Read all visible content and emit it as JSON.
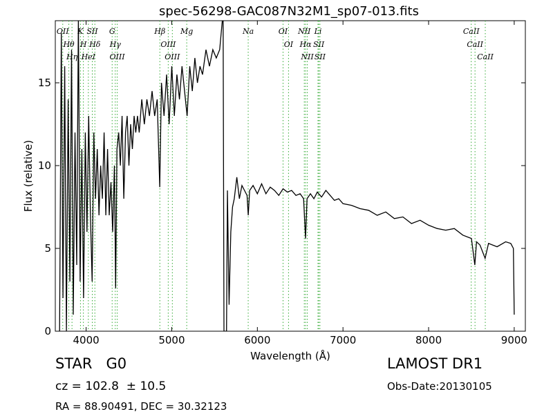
{
  "chart_data": {
    "type": "line",
    "title": "spec-56298-GAC087N32M1_sp07-013.fits",
    "x_label": "Wavelength (Å)",
    "y_label": "Flux (relative)",
    "xlim": [
      3640,
      9130
    ],
    "ylim": [
      0,
      18.75
    ],
    "xticks": [
      4000,
      5000,
      6000,
      7000,
      8000,
      9000
    ],
    "yticks": [
      0,
      5,
      10,
      15
    ],
    "color": "#000000",
    "line_color": "#33aa33",
    "x": [
      3690,
      3710,
      3730,
      3750,
      3770,
      3790,
      3810,
      3830,
      3850,
      3870,
      3890,
      3910,
      3930,
      3950,
      3970,
      3990,
      4010,
      4030,
      4050,
      4070,
      4090,
      4110,
      4130,
      4150,
      4170,
      4190,
      4210,
      4230,
      4250,
      4270,
      4290,
      4310,
      4330,
      4345,
      4360,
      4380,
      4400,
      4420,
      4440,
      4460,
      4480,
      4500,
      4520,
      4540,
      4560,
      4580,
      4600,
      4620,
      4650,
      4680,
      4710,
      4740,
      4770,
      4800,
      4830,
      4860,
      4880,
      4910,
      4940,
      4970,
      5000,
      5030,
      5060,
      5090,
      5120,
      5150,
      5180,
      5210,
      5240,
      5270,
      5300,
      5330,
      5360,
      5400,
      5440,
      5480,
      5520,
      5560,
      5590,
      5600,
      5610,
      5640,
      5650,
      5670,
      5690,
      5710,
      5730,
      5760,
      5790,
      5820,
      5850,
      5880,
      5893,
      5910,
      5950,
      6000,
      6050,
      6100,
      6150,
      6200,
      6250,
      6300,
      6350,
      6400,
      6450,
      6500,
      6540,
      6563,
      6580,
      6620,
      6660,
      6700,
      6750,
      6800,
      6850,
      6900,
      6950,
      7000,
      7100,
      7200,
      7300,
      7400,
      7500,
      7600,
      7700,
      7800,
      7900,
      8000,
      8100,
      8200,
      8300,
      8400,
      8500,
      8540,
      8560,
      8600,
      8660,
      8700,
      8800,
      8900,
      8960,
      8990,
      9000
    ],
    "values": [
      0,
      18,
      2,
      16,
      0,
      14,
      3,
      17,
      1,
      12,
      4,
      19,
      3,
      11,
      2,
      12,
      6,
      13,
      7,
      3,
      12,
      8,
      11,
      7,
      10,
      8,
      12,
      7,
      11,
      7,
      9,
      6,
      10,
      2.6,
      11,
      12,
      10,
      13,
      8,
      12,
      13,
      10,
      12.5,
      11,
      13,
      12,
      13,
      12,
      14,
      12.5,
      14,
      13,
      14.5,
      13,
      14,
      8.7,
      15,
      13,
      15.5,
      12.5,
      16,
      13,
      15.5,
      14,
      16,
      14.5,
      13,
      16,
      14.5,
      16.5,
      15,
      16,
      15.5,
      17,
      16,
      17,
      16.5,
      17,
      18.7,
      18.7,
      0,
      0,
      8.5,
      1.6,
      6,
      7.5,
      8,
      9.3,
      8,
      8.8,
      8.5,
      8.2,
      7,
      8.5,
      8.8,
      8.3,
      8.9,
      8.3,
      8.7,
      8.5,
      8.2,
      8.6,
      8.4,
      8.5,
      8.2,
      8.3,
      8.0,
      5.6,
      8.0,
      8.3,
      8.0,
      8.4,
      8.1,
      8.5,
      8.2,
      7.9,
      8.0,
      7.7,
      7.6,
      7.4,
      7.3,
      7.0,
      7.2,
      6.8,
      6.9,
      6.5,
      6.7,
      6.4,
      6.2,
      6.1,
      6.2,
      5.8,
      5.6,
      4.0,
      5.4,
      5.2,
      4.4,
      5.3,
      5.1,
      5.4,
      5.3,
      5.0,
      1.0
    ],
    "lines": [
      {
        "label": "OII",
        "x": 3727
      },
      {
        "label": "Hθ",
        "x": 3798
      },
      {
        "label": "Hη",
        "x": 3835
      },
      {
        "label": "K",
        "x": 3934
      },
      {
        "label": "H",
        "x": 3968
      },
      {
        "label": "HeI",
        "x": 4026
      },
      {
        "label": "SII",
        "x": 4072
      },
      {
        "label": "Hδ",
        "x": 4102
      },
      {
        "label": "G",
        "x": 4304
      },
      {
        "label": "Hγ",
        "x": 4340
      },
      {
        "label": "OIII",
        "x": 4363
      },
      {
        "label": "Hβ",
        "x": 4861
      },
      {
        "label": "OIII",
        "x": 4959
      },
      {
        "label": "OIII",
        "x": 5007
      },
      {
        "label": "Mg",
        "x": 5175
      },
      {
        "label": "Na",
        "x": 5893
      },
      {
        "label": "OI",
        "x": 6300
      },
      {
        "label": "OI",
        "x": 6364
      },
      {
        "label": "NII",
        "x": 6548
      },
      {
        "label": "Hα",
        "x": 6563
      },
      {
        "label": "NII",
        "x": 6583
      },
      {
        "label": "Li",
        "x": 6708
      },
      {
        "label": "SII",
        "x": 6717
      },
      {
        "label": "SII",
        "x": 6731
      },
      {
        "label": "CaII",
        "x": 8498
      },
      {
        "label": "CaII",
        "x": 8542
      },
      {
        "label": "CaII",
        "x": 8662
      }
    ],
    "info": {
      "class": "STAR   G0",
      "cz": "cz = 102.8  ± 10.5",
      "survey": "LAMOST DR1",
      "date": "Obs-Date:20130105",
      "coords": "RA = 88.90491, DEC = 30.32123"
    }
  }
}
